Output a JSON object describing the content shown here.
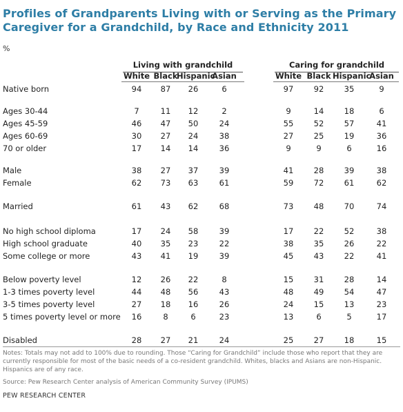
{
  "title": "Profiles of Grandparents Living with or Serving as the Primary Caregiver for a Grandchild, by Race and Ethnicity 2011",
  "unit": "%",
  "groups": [
    {
      "label": "Living with grandchild"
    },
    {
      "label": "Caring for grandchild"
    }
  ],
  "columns": [
    "White",
    "Black",
    "Hispanic",
    "Asian",
    "White",
    "Black",
    "Hispanic",
    "Asian"
  ],
  "chart_data": {
    "type": "table",
    "title": "Profiles of Grandparents Living with or Serving as the Primary Caregiver for a Grandchild, by Race and Ethnicity 2011",
    "unit": "%",
    "column_groups": [
      {
        "name": "Living with grandchild",
        "columns": [
          "White",
          "Black",
          "Hispanic",
          "Asian"
        ]
      },
      {
        "name": "Caring for grandchild",
        "columns": [
          "White",
          "Black",
          "Hispanic",
          "Asian"
        ]
      }
    ],
    "rows": [
      {
        "label": "Native born",
        "values": [
          94,
          87,
          26,
          6,
          97,
          92,
          35,
          9
        ]
      },
      {
        "label": "Ages 30-44",
        "values": [
          7,
          11,
          12,
          2,
          9,
          14,
          18,
          6
        ]
      },
      {
        "label": "Ages 45-59",
        "values": [
          46,
          47,
          50,
          24,
          55,
          52,
          57,
          41
        ]
      },
      {
        "label": "Ages 60-69",
        "values": [
          30,
          27,
          24,
          38,
          27,
          25,
          19,
          36
        ]
      },
      {
        "label": "70 or older",
        "values": [
          17,
          14,
          14,
          36,
          9,
          9,
          6,
          16
        ]
      },
      {
        "label": "Male",
        "values": [
          38,
          27,
          37,
          39,
          41,
          28,
          39,
          38
        ]
      },
      {
        "label": "Female",
        "values": [
          62,
          73,
          63,
          61,
          59,
          72,
          61,
          62
        ]
      },
      {
        "label": "Married",
        "values": [
          61,
          43,
          62,
          68,
          73,
          48,
          70,
          74
        ]
      },
      {
        "label": "No high school diploma",
        "values": [
          17,
          24,
          58,
          39,
          17,
          22,
          52,
          38
        ]
      },
      {
        "label": "High school graduate",
        "values": [
          40,
          35,
          23,
          22,
          38,
          35,
          26,
          22
        ]
      },
      {
        "label": "Some college or more",
        "values": [
          43,
          41,
          19,
          39,
          45,
          43,
          22,
          41
        ]
      },
      {
        "label": "Below poverty level",
        "values": [
          12,
          26,
          22,
          8,
          15,
          31,
          28,
          14
        ]
      },
      {
        "label": "1-3 times poverty level",
        "values": [
          44,
          48,
          56,
          43,
          48,
          49,
          54,
          47
        ]
      },
      {
        "label": "3-5 times poverty level",
        "values": [
          27,
          18,
          16,
          26,
          24,
          15,
          13,
          23
        ]
      },
      {
        "label": "5 times poverty level or more",
        "values": [
          16,
          8,
          6,
          23,
          13,
          6,
          5,
          17
        ]
      },
      {
        "label": "Disabled",
        "values": [
          28,
          27,
          21,
          24,
          25,
          27,
          18,
          15
        ]
      }
    ]
  },
  "notes": "Notes: Totals may not add to 100% due to rounding. Those “Caring for Grandchild” include those who report that they are currently responsible for most of the basic needs of a co-resident grandchild. Whites, blacks and Asians are non-Hispanic. Hispanics are of any race.",
  "source": "Source: Pew Research Center analysis of American Community Survey (IPUMS)",
  "credit": "PEW RESEARCH CENTER",
  "colors": {
    "title": "#2e7ea6",
    "text": "#222222",
    "notes": "#777777"
  }
}
